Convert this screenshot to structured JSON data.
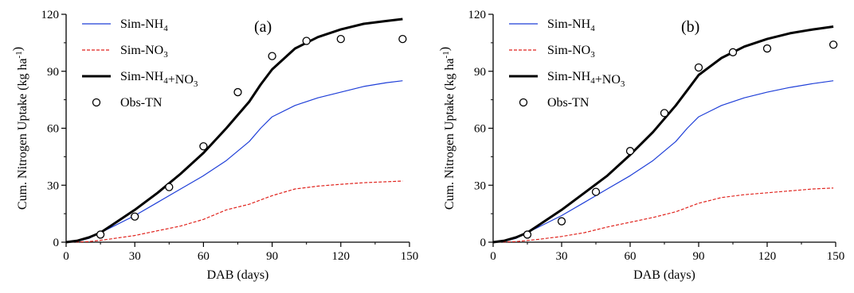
{
  "chart_data": [
    {
      "type": "line",
      "panel_label": "(a)",
      "xlabel": "DAB (days)",
      "ylabel": "Cum. Nitrogen Uptake (kg ha⁻¹)",
      "xlim": [
        0,
        150
      ],
      "ylim": [
        0,
        120
      ],
      "xticks": [
        "0",
        "30",
        "60",
        "90",
        "120",
        "150"
      ],
      "yticks": [
        "0",
        "30",
        "60",
        "90",
        "120"
      ],
      "legend_position": "top-left",
      "series": [
        {
          "name": "Sim-NH₄",
          "style": "line",
          "color": "#1f3fd8",
          "x": [
            0,
            5,
            10,
            15,
            20,
            30,
            40,
            50,
            60,
            70,
            80,
            85,
            90,
            100,
            110,
            120,
            130,
            140,
            147
          ],
          "y": [
            0,
            0.5,
            2,
            5,
            8,
            14,
            21,
            28,
            35,
            43,
            53,
            60,
            66,
            72,
            76,
            79,
            82,
            84,
            85
          ]
        },
        {
          "name": "Sim-NO₃",
          "style": "dashed",
          "color": "#e0221c",
          "x": [
            0,
            10,
            15,
            20,
            30,
            40,
            50,
            60,
            70,
            80,
            90,
            100,
            110,
            120,
            130,
            140,
            147
          ],
          "y": [
            0,
            0.3,
            1,
            1.8,
            3.5,
            6,
            8.5,
            12,
            17,
            20,
            24.5,
            28,
            29.5,
            30.5,
            31.3,
            31.8,
            32.2
          ]
        },
        {
          "name": "Sim-NH₄+NO₃",
          "style": "thick",
          "color": "#000000",
          "x": [
            0,
            5,
            10,
            15,
            20,
            30,
            40,
            50,
            60,
            70,
            80,
            85,
            90,
            100,
            110,
            120,
            130,
            140,
            147
          ],
          "y": [
            0,
            0.8,
            2.5,
            5,
            9,
            17,
            26,
            36,
            47,
            60,
            74,
            83,
            91,
            102,
            108,
            112,
            115,
            116.5,
            117.5
          ]
        },
        {
          "name": "Obs-TN",
          "style": "marker",
          "color": "#000000",
          "x": [
            15,
            30,
            45,
            60,
            75,
            90,
            105,
            120,
            147
          ],
          "y": [
            4,
            13.5,
            29,
            50.5,
            79,
            98,
            106,
            107,
            107
          ]
        }
      ]
    },
    {
      "type": "line",
      "panel_label": "(b)",
      "xlabel": "DAB (days)",
      "ylabel": "Cum. Nitrogen Uptake (kg ha⁻¹)",
      "xlim": [
        0,
        150
      ],
      "ylim": [
        0,
        120
      ],
      "xticks": [
        "0",
        "30",
        "60",
        "90",
        "120",
        "150"
      ],
      "yticks": [
        "0",
        "30",
        "60",
        "90",
        "120"
      ],
      "legend_position": "top-left",
      "series": [
        {
          "name": "Sim-NH₄",
          "style": "line",
          "color": "#1f3fd8",
          "x": [
            0,
            5,
            10,
            15,
            20,
            30,
            40,
            50,
            60,
            70,
            80,
            85,
            90,
            100,
            110,
            120,
            130,
            140,
            149
          ],
          "y": [
            0,
            0.5,
            2,
            5,
            8,
            14,
            21,
            28,
            35,
            43,
            53,
            60,
            66,
            72,
            76,
            79,
            81.5,
            83.5,
            85
          ]
        },
        {
          "name": "Sim-NO₃",
          "style": "dashed",
          "color": "#e0221c",
          "x": [
            0,
            10,
            20,
            30,
            40,
            50,
            60,
            70,
            80,
            90,
            100,
            110,
            120,
            130,
            140,
            149
          ],
          "y": [
            0,
            0.3,
            1.5,
            3,
            5,
            8,
            10.5,
            13,
            16,
            20.5,
            23.5,
            25,
            26,
            27,
            28,
            28.5
          ]
        },
        {
          "name": "Sim-NH₄+NO₃",
          "style": "thick",
          "color": "#000000",
          "x": [
            0,
            5,
            10,
            15,
            20,
            30,
            40,
            50,
            60,
            70,
            80,
            85,
            90,
            100,
            110,
            120,
            130,
            140,
            149
          ],
          "y": [
            0,
            0.8,
            2.5,
            5,
            9,
            17,
            26,
            35,
            46,
            58,
            72,
            80,
            88,
            97,
            103,
            107,
            110,
            112,
            113.5
          ]
        },
        {
          "name": "Obs-TN",
          "style": "marker",
          "color": "#000000",
          "x": [
            15,
            30,
            45,
            60,
            75,
            90,
            105,
            120,
            149
          ],
          "y": [
            4,
            11,
            26.5,
            48,
            68,
            92,
            100,
            102,
            104
          ]
        }
      ]
    }
  ]
}
